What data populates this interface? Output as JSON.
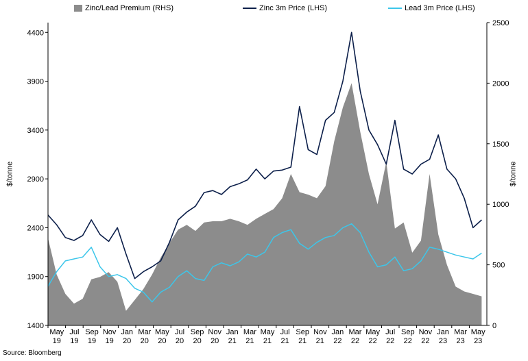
{
  "source_note": "Source: Bloomberg",
  "colors": {
    "premium": "#8c8c8c",
    "zinc": "#0c1f4a",
    "lead": "#3cc6ea"
  },
  "chart_data": {
    "type": "line",
    "title": "",
    "ylabel_left": "$/tonne",
    "ylabel_right": "$/tonne",
    "ylim_left": [
      1400,
      4500
    ],
    "ylim_right": [
      0,
      2500
    ],
    "yticks_left": [
      "1400",
      "1900",
      "2400",
      "2900",
      "3400",
      "3900",
      "4400"
    ],
    "yticks_right": [
      "0",
      "500",
      "1000",
      "1500",
      "2000",
      "2500"
    ],
    "x_tick_labels": [
      [
        "May",
        "19"
      ],
      [
        "Jul",
        "19"
      ],
      [
        "Sep",
        "19"
      ],
      [
        "Nov",
        "19"
      ],
      [
        "Jan",
        "20"
      ],
      [
        "Mar",
        "20"
      ],
      [
        "May",
        "20"
      ],
      [
        "Jul",
        "20"
      ],
      [
        "Sep",
        "20"
      ],
      [
        "Nov",
        "20"
      ],
      [
        "Jan",
        "21"
      ],
      [
        "Mar",
        "21"
      ],
      [
        "May",
        "21"
      ],
      [
        "Jul",
        "21"
      ],
      [
        "Sep",
        "21"
      ],
      [
        "Nov",
        "21"
      ],
      [
        "Jan",
        "22"
      ],
      [
        "Mar",
        "22"
      ],
      [
        "May",
        "22"
      ],
      [
        "Jul",
        "22"
      ],
      [
        "Sep",
        "22"
      ],
      [
        "Nov",
        "22"
      ],
      [
        "Jan",
        "23"
      ],
      [
        "Mar",
        "23"
      ],
      [
        "May",
        "23"
      ]
    ],
    "legend_position": "top",
    "x": [
      "2019-05",
      "2019-06",
      "2019-07",
      "2019-08",
      "2019-09",
      "2019-10",
      "2019-11",
      "2019-12",
      "2020-01",
      "2020-02",
      "2020-03",
      "2020-04",
      "2020-05",
      "2020-06",
      "2020-07",
      "2020-08",
      "2020-09",
      "2020-10",
      "2020-11",
      "2020-12",
      "2021-01",
      "2021-02",
      "2021-03",
      "2021-04",
      "2021-05",
      "2021-06",
      "2021-07",
      "2021-08",
      "2021-09",
      "2021-10",
      "2021-11",
      "2021-12",
      "2022-01",
      "2022-02",
      "2022-03",
      "2022-04",
      "2022-05",
      "2022-06",
      "2022-07",
      "2022-08",
      "2022-09",
      "2022-10",
      "2022-11",
      "2022-12",
      "2023-01",
      "2023-02",
      "2023-03",
      "2023-04",
      "2023-05",
      "2023-06",
      "2023-07"
    ],
    "series": [
      {
        "name": "Zinc/Lead Premium (RHS)",
        "axis": "right",
        "style": "area",
        "values": [
          720,
          420,
          260,
          180,
          220,
          380,
          400,
          440,
          360,
          120,
          210,
          300,
          420,
          560,
          680,
          790,
          830,
          780,
          850,
          860,
          860,
          880,
          860,
          830,
          880,
          920,
          960,
          1050,
          1250,
          1100,
          1080,
          1050,
          1150,
          1520,
          1800,
          2000,
          1600,
          1250,
          1000,
          1350,
          800,
          850,
          600,
          700,
          1250,
          750,
          500,
          320,
          280,
          260,
          240
        ]
      },
      {
        "name": "Zinc 3m Price (LHS)",
        "axis": "left",
        "style": "line",
        "values": [
          2530,
          2430,
          2300,
          2270,
          2320,
          2480,
          2330,
          2260,
          2400,
          2130,
          1880,
          1950,
          2000,
          2060,
          2250,
          2480,
          2560,
          2620,
          2760,
          2780,
          2740,
          2820,
          2850,
          2890,
          3000,
          2900,
          2980,
          2990,
          3020,
          3640,
          3200,
          3150,
          3500,
          3580,
          3900,
          4400,
          3800,
          3400,
          3250,
          3050,
          3500,
          3000,
          2950,
          3050,
          3100,
          3350,
          3000,
          2900,
          2700,
          2400,
          2480
        ]
      },
      {
        "name": "Lead 3m Price (LHS)",
        "axis": "left",
        "style": "line",
        "values": [
          1800,
          1950,
          2060,
          2080,
          2100,
          2200,
          2000,
          1900,
          1920,
          1880,
          1780,
          1740,
          1640,
          1740,
          1790,
          1900,
          1960,
          1880,
          1860,
          2000,
          2040,
          2010,
          2050,
          2130,
          2100,
          2150,
          2300,
          2350,
          2380,
          2240,
          2180,
          2250,
          2300,
          2320,
          2400,
          2440,
          2350,
          2150,
          2000,
          2020,
          2100,
          1960,
          1980,
          2060,
          2200,
          2180,
          2150,
          2120,
          2100,
          2080,
          2140
        ]
      }
    ]
  }
}
